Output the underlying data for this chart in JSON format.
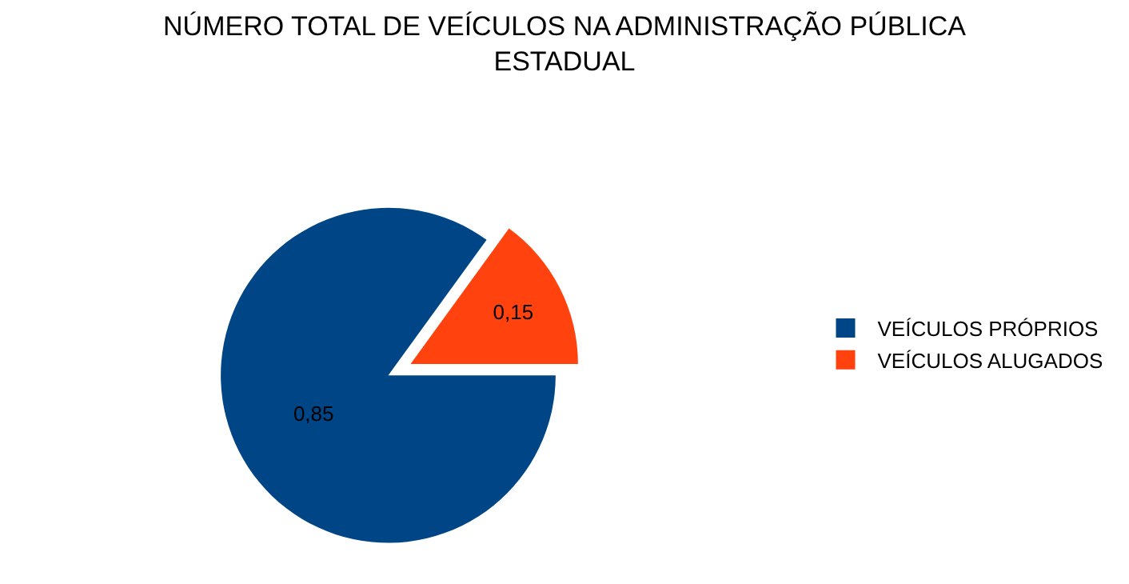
{
  "chart_data": {
    "type": "pie",
    "title": "NÚMERO TOTAL DE VEÍCULOS NA ADMINISTRAÇÃO PÚBLICA\nESTADUAL",
    "categories": [
      "VEÍCULOS PRÓPRIOS",
      "VEÍCULOS ALUGADOS"
    ],
    "values": [
      0.85,
      0.15
    ],
    "value_labels": [
      "0,85",
      "0,15"
    ],
    "colors": [
      "#004586",
      "#ff420e"
    ],
    "legend": "right"
  }
}
